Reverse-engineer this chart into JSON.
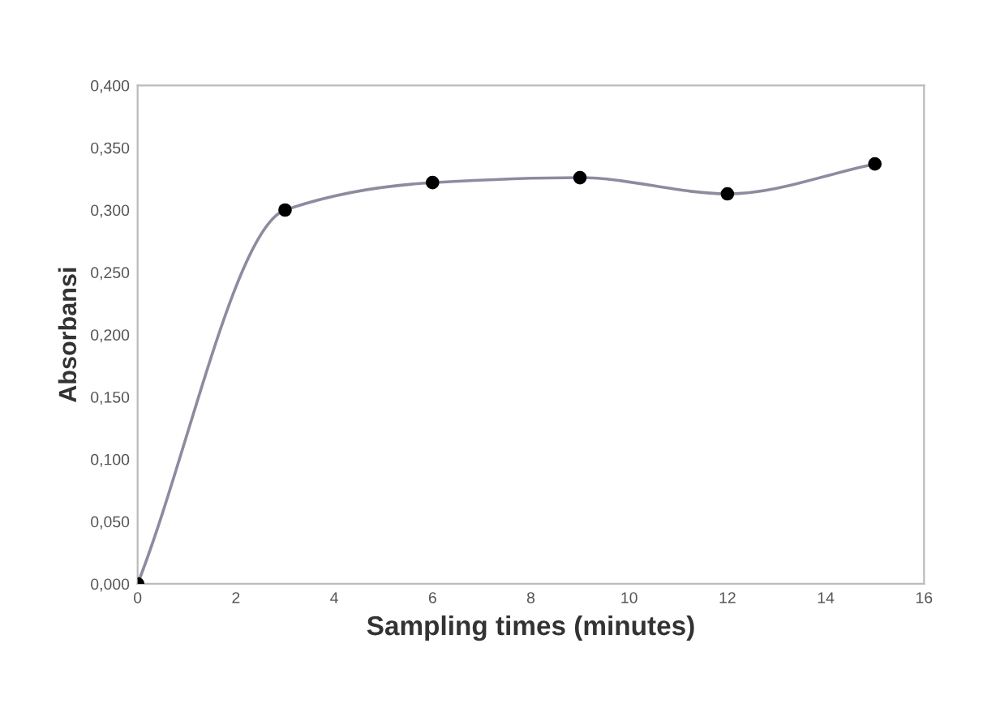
{
  "chart_data": {
    "type": "line",
    "xlabel": "Sampling times (minutes)",
    "ylabel": "Absorbansi",
    "x": [
      0,
      3,
      6,
      9,
      12,
      15
    ],
    "series": [
      {
        "color": "#8c8ca0",
        "colors": [
          "#000000",
          "#000000",
          "#000000",
          "#000000",
          "#000000",
          "#000000"
        ],
        "values": [
          0.0,
          0.3,
          0.322,
          0.326,
          0.313,
          0.337
        ]
      }
    ],
    "xlim": [
      0,
      16
    ],
    "xticks": [
      0,
      2,
      4,
      6,
      8,
      10,
      12,
      14,
      16
    ],
    "ylim": [
      0,
      0.4
    ],
    "yticks": [
      {
        "value": 0,
        "label": "0,000"
      },
      {
        "value": 0.05,
        "label": "0,050"
      },
      {
        "value": 0.1,
        "label": "0,100"
      },
      {
        "value": 0.15,
        "label": "0,150"
      },
      {
        "value": 0.2,
        "label": "0,200"
      },
      {
        "value": 0.25,
        "label": "0,250"
      },
      {
        "value": 0.3,
        "label": "0,300"
      },
      {
        "value": 0.35,
        "label": "0,350"
      },
      {
        "value": 0.4,
        "label": "0,400"
      }
    ],
    "grid": false,
    "legend": false,
    "marker": "circle",
    "line_style": "solid"
  }
}
